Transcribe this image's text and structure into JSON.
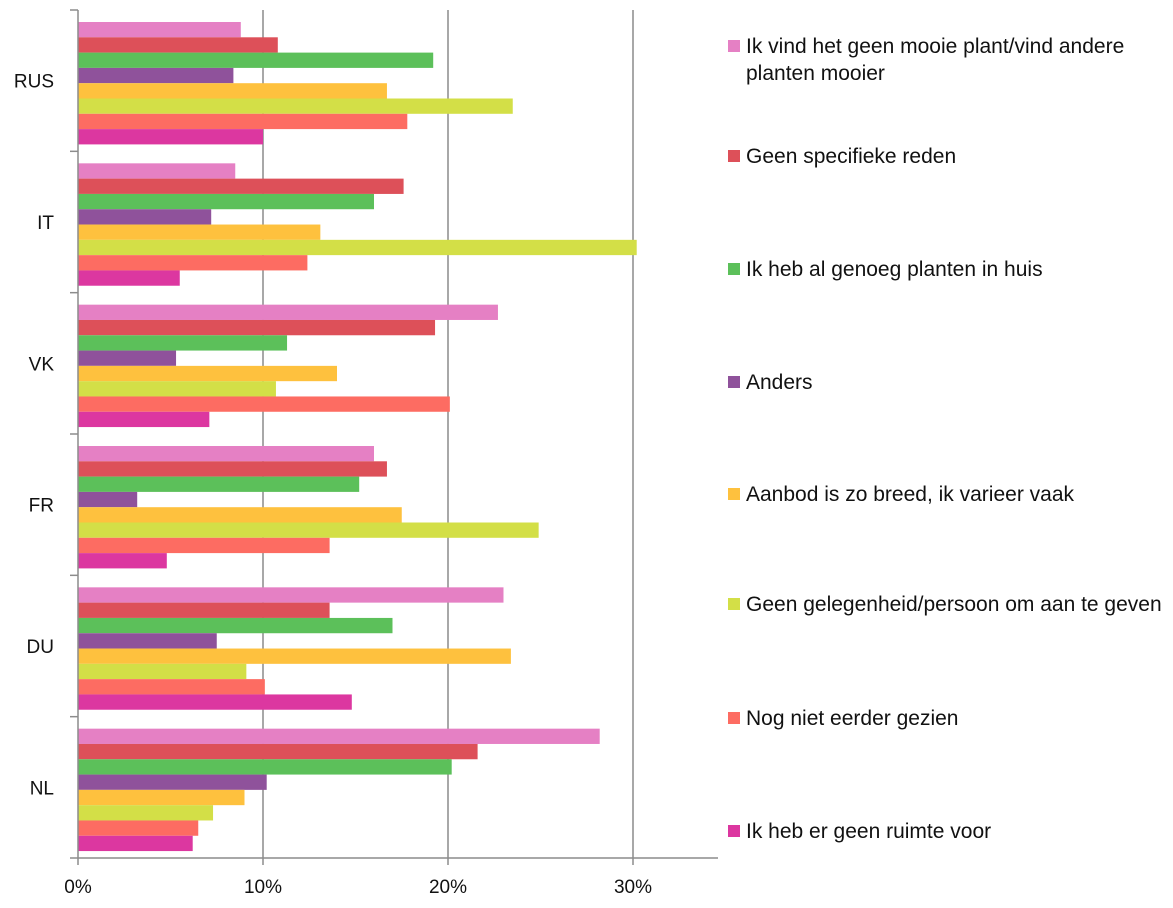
{
  "chart_data": {
    "type": "bar",
    "orientation": "horizontal",
    "categories": [
      "RUS",
      "IT",
      "VK",
      "FR",
      "DU",
      "NL"
    ],
    "xlim": [
      0,
      35
    ],
    "xticks": [
      0,
      10,
      20,
      30
    ],
    "tick_suffix": "%",
    "grid": true,
    "legend_position": "right",
    "series": [
      {
        "name": "Ik vind het geen mooie plant/vind andere planten mooier",
        "color": "#e580c4",
        "values": [
          8.8,
          8.5,
          22.7,
          16.0,
          23.0,
          28.2
        ]
      },
      {
        "name": "Geen specifieke reden",
        "color": "#dd5059",
        "values": [
          10.8,
          17.6,
          19.3,
          16.7,
          13.6,
          21.6
        ]
      },
      {
        "name": "Ik heb al genoeg planten in huis",
        "color": "#5cc05a",
        "values": [
          19.2,
          16.0,
          11.3,
          15.2,
          17.0,
          20.2
        ]
      },
      {
        "name": "Anders",
        "color": "#8f529b",
        "values": [
          8.4,
          7.2,
          5.3,
          3.2,
          7.5,
          10.2
        ]
      },
      {
        "name": "Aanbod is zo breed, ik varieer vaak",
        "color": "#fec13e",
        "values": [
          16.7,
          13.1,
          14.0,
          17.5,
          23.4,
          9.0
        ]
      },
      {
        "name": "Geen gelegenheid/persoon om aan te geven",
        "color": "#d3df47",
        "values": [
          23.5,
          30.2,
          10.7,
          24.9,
          9.1,
          7.3
        ]
      },
      {
        "name": "Nog niet eerder gezien",
        "color": "#fd6c62",
        "values": [
          17.8,
          12.4,
          20.1,
          13.6,
          10.1,
          6.5
        ]
      },
      {
        "name": "Ik heb er geen ruimte voor",
        "color": "#dc37a0",
        "values": [
          10.0,
          5.5,
          7.1,
          4.8,
          14.8,
          6.2
        ]
      }
    ]
  }
}
